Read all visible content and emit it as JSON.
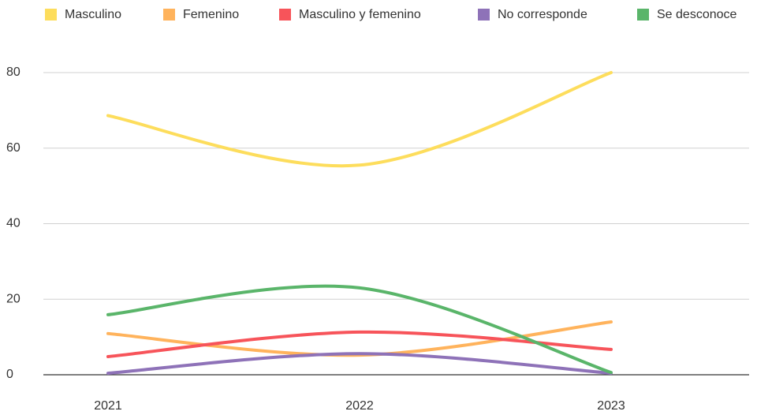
{
  "chart_data": {
    "type": "line",
    "categories": [
      "2021",
      "2022",
      "2023"
    ],
    "series": [
      {
        "name": "Masculino",
        "color": "#fddd5c",
        "values": [
          68.6,
          55.5,
          80
        ]
      },
      {
        "name": "Femenino",
        "color": "#ffb35c",
        "values": [
          10.9,
          5.2,
          14
        ]
      },
      {
        "name": "Masculino y femenino",
        "color": "#f7545a",
        "values": [
          4.8,
          11.3,
          6.7
        ]
      },
      {
        "name": "No corresponde",
        "color": "#8e72b8",
        "values": [
          0.4,
          5.6,
          0.4
        ]
      },
      {
        "name": "Se desconoce",
        "color": "#5ab56a",
        "values": [
          15.9,
          23,
          0.6
        ]
      }
    ],
    "ylim": [
      0,
      80
    ],
    "yticks": [
      0,
      20,
      40,
      60,
      80
    ],
    "grid": true,
    "smooth": true,
    "legend": "top"
  }
}
